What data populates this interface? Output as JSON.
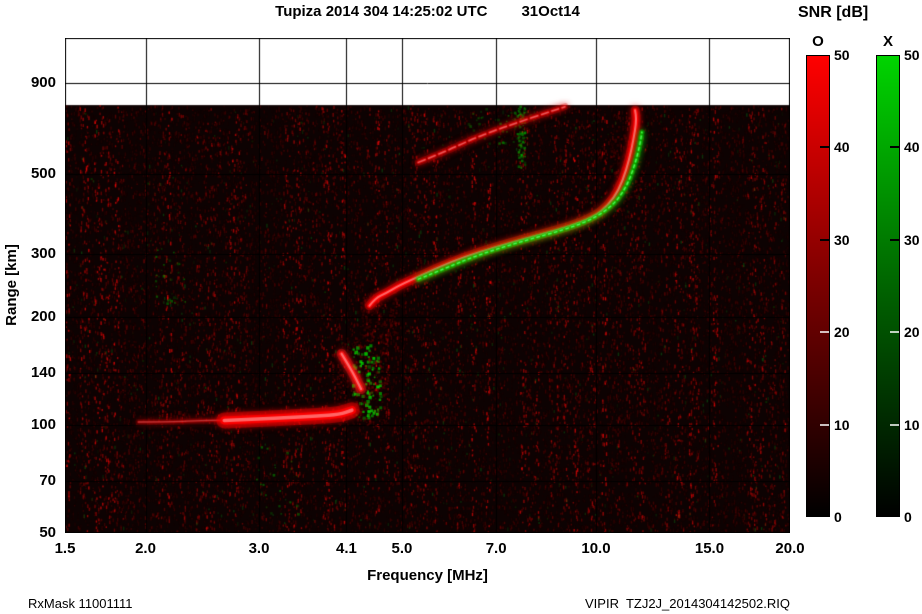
{
  "header": {
    "title": "Tupiza 2014 304 14:25:02 UTC",
    "date": "31Oct14"
  },
  "colorbar": {
    "title": "SNR [dB]",
    "o_label": "O",
    "x_label": "X",
    "ticks": [
      0,
      10,
      20,
      30,
      40,
      50
    ],
    "max": 50,
    "o_color": "#ff0000",
    "x_color": "#00d400"
  },
  "axes": {
    "x_label": "Frequency [MHz]",
    "y_label": "Range [km]",
    "x_ticks": [
      1.5,
      2.0,
      3.0,
      4.1,
      5.0,
      7.0,
      10.0,
      15.0,
      20.0
    ],
    "x_tick_labels": [
      "1.5",
      "2.0",
      "3.0",
      "4.1",
      "5.0",
      "7.0",
      "10.0",
      "15.0",
      "20.0"
    ],
    "y_ticks": [
      50,
      70,
      100,
      140,
      200,
      300,
      500,
      900
    ],
    "y_tick_labels": [
      "50",
      "70",
      "100",
      "140",
      "200",
      "300",
      "500",
      "900"
    ],
    "x_range": [
      1.5,
      20
    ],
    "y_range": [
      50,
      1200
    ]
  },
  "footer": {
    "left": "RxMask 11001111",
    "right": "VIPIR  TZJ2J_2014304142502.RIQ"
  },
  "chart_data": {
    "type": "heatmap",
    "title": "Tupiza 2014 304 14:25:02 UTC 31Oct14",
    "xlabel": "Frequency [MHz]",
    "ylabel": "Range [km]",
    "x_scale": "log",
    "y_scale": "log",
    "xlim": [
      1.5,
      20
    ],
    "ylim": [
      50,
      1200
    ],
    "data_max_range_km": 780,
    "background": "#0d0202",
    "noise": {
      "seed": 20141031,
      "count": 26000,
      "columns": 150
    },
    "traces": [
      {
        "name": "E-layer O-mode faint tail",
        "mode": "O",
        "color": "#d40000",
        "style": "line",
        "width": 3,
        "alpha": 0.5,
        "points": [
          [
            1.95,
            102
          ],
          [
            2.2,
            102
          ],
          [
            2.45,
            103
          ],
          [
            2.65,
            103
          ]
        ]
      },
      {
        "name": "E-layer O-mode echo",
        "mode": "O",
        "color": "#ff0000",
        "style": "line",
        "width": 8,
        "alpha": 1,
        "points": [
          [
            2.65,
            103
          ],
          [
            3.0,
            104
          ],
          [
            3.35,
            105
          ],
          [
            3.7,
            106
          ],
          [
            4.0,
            107
          ],
          [
            4.18,
            110
          ]
        ]
      },
      {
        "name": "Es cusp streak",
        "mode": "O",
        "color": "#ff1414",
        "style": "line",
        "width": 5,
        "alpha": 0.95,
        "points": [
          [
            4.03,
            158
          ],
          [
            4.14,
            146
          ],
          [
            4.24,
            135
          ],
          [
            4.32,
            126
          ]
        ]
      },
      {
        "name": "F-layer O-mode trace",
        "mode": "O",
        "color": "#ff0000",
        "style": "line",
        "width": 4.5,
        "alpha": 1,
        "points": [
          [
            4.45,
            215
          ],
          [
            4.55,
            226
          ],
          [
            4.72,
            233
          ],
          [
            4.95,
            245
          ],
          [
            5.4,
            263
          ],
          [
            5.95,
            285
          ],
          [
            6.6,
            304
          ],
          [
            7.35,
            322
          ],
          [
            8.2,
            340
          ],
          [
            9.1,
            358
          ],
          [
            9.95,
            382
          ],
          [
            10.45,
            410
          ],
          [
            10.85,
            452
          ],
          [
            11.15,
            515
          ],
          [
            11.35,
            585
          ],
          [
            11.5,
            665
          ],
          [
            11.55,
            715
          ],
          [
            11.5,
            755
          ]
        ]
      },
      {
        "name": "F-layer X-mode trace",
        "mode": "X",
        "color": "#00dd00",
        "style": "dotted",
        "width": 3,
        "alpha": 0.9,
        "points": [
          [
            5.3,
            255
          ],
          [
            5.9,
            276
          ],
          [
            6.5,
            296
          ],
          [
            7.2,
            314
          ],
          [
            8.0,
            332
          ],
          [
            8.9,
            350
          ],
          [
            9.7,
            370
          ],
          [
            10.3,
            393
          ],
          [
            10.8,
            424
          ],
          [
            11.2,
            470
          ],
          [
            11.5,
            535
          ],
          [
            11.7,
            605
          ],
          [
            11.78,
            655
          ]
        ]
      },
      {
        "name": "second-hop O-mode echo",
        "mode": "O",
        "color": "#dd0000",
        "style": "dashed",
        "width": 3.5,
        "alpha": 0.85,
        "points": [
          [
            5.3,
            540
          ],
          [
            5.85,
            580
          ],
          [
            6.4,
            625
          ],
          [
            7.0,
            665
          ],
          [
            7.6,
            700
          ],
          [
            8.3,
            738
          ],
          [
            8.95,
            772
          ]
        ]
      }
    ],
    "speckle_clusters": [
      {
        "name": "Es X-mode green speckles",
        "color": "#00e000",
        "count": 90,
        "f": [
          4.18,
          4.62
        ],
        "r": [
          105,
          168
        ],
        "dot": 2.6,
        "alpha": 0.85
      },
      {
        "name": "red fuzz above E layer",
        "color": "#b40000",
        "count": 320,
        "f": [
          3.95,
          4.75
        ],
        "r": [
          100,
          178
        ],
        "dot": 2,
        "alpha": 0.3
      },
      {
        "name": "red fuzz below F trace start",
        "color": "#aa0000",
        "count": 140,
        "f": [
          4.3,
          4.9
        ],
        "r": [
          178,
          228
        ],
        "dot": 2,
        "alpha": 0.25
      },
      {
        "name": "red clutter near F cusp",
        "color": "#aa0000",
        "count": 160,
        "f": [
          10.5,
          11.7
        ],
        "r": [
          420,
          740
        ],
        "dot": 2,
        "alpha": 0.28
      },
      {
        "name": "green RFI stripe 7.6 MHz",
        "color": "#00cc00",
        "count": 80,
        "f": [
          7.55,
          7.75
        ],
        "r": [
          520,
          780
        ],
        "dot": 2,
        "alpha": 0.5
      },
      {
        "name": "green speckles near second hop",
        "color": "#00cc00",
        "count": 45,
        "f": [
          6.3,
          7.9
        ],
        "r": [
          610,
          770
        ],
        "dot": 2,
        "alpha": 0.5
      },
      {
        "name": "green speckles left 2.1 MHz",
        "color": "#00b400",
        "count": 28,
        "f": [
          2.05,
          2.32
        ],
        "r": [
          215,
          315
        ],
        "dot": 2,
        "alpha": 0.5
      },
      {
        "name": "green speckles low 3.2 MHz",
        "color": "#00c000",
        "count": 22,
        "f": [
          2.95,
          3.45
        ],
        "r": [
          56,
          88
        ],
        "dot": 2,
        "alpha": 0.5
      },
      {
        "name": "scattered green dots",
        "color": "#00aa00",
        "count": 70,
        "f": [
          1.6,
          19.5
        ],
        "r": [
          52,
          760
        ],
        "dot": 1.5,
        "alpha": 0.3
      }
    ]
  }
}
